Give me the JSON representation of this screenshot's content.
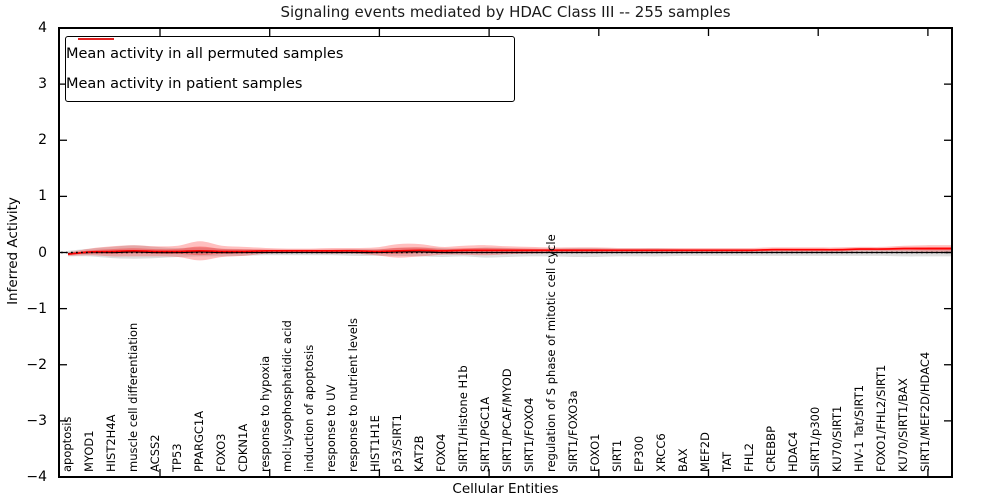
{
  "title": "Signaling events mediated by HDAC Class III -- 255 samples",
  "legend": {
    "items": [
      {
        "label": "Mean activity in all permuted samples",
        "color": "#000000"
      },
      {
        "label": "Mean activity in patient samples",
        "color": "#ff0000"
      }
    ]
  },
  "chart_data": {
    "type": "line",
    "title": "Signaling events mediated by HDAC Class III -- 255 samples",
    "xlabel": "Cellular Entities",
    "ylabel": "Inferred Activity",
    "ylim": [
      -4,
      4
    ],
    "yticks": [
      4,
      3,
      2,
      1,
      0,
      -1,
      -2,
      -3,
      -4
    ],
    "grid": false,
    "legend_position": "upper left",
    "zero_line": {
      "value": 0,
      "style": "dotted",
      "color": "#000000"
    },
    "categories": [
      "apoptosis",
      "MYOD1",
      "HIST2H4A",
      "muscle cell differentiation",
      "ACSS2",
      "TP53",
      "PPARGC1A",
      "FOXO3",
      "CDKN1A",
      "response to hypoxia",
      "mol:Lysophosphatidic acid",
      "induction of apoptosis",
      "response to UV",
      "response to nutrient levels",
      "HIST1H1E",
      "p53/SIRT1",
      "KAT2B",
      "FOXO4",
      "SIRT1/Histone H1b",
      "SIRT1/PGC1A",
      "SIRT1/PCAF/MYOD",
      "SIRT1/FOXO4",
      "regulation of S phase of mitotic cell cycle",
      "SIRT1/FOXO3a",
      "FOXO1",
      "SIRT1",
      "EP300",
      "XRCC6",
      "BAX",
      "MEF2D",
      "TAT",
      "FHL2",
      "CREBBP",
      "HDAC4",
      "SIRT1/p300",
      "KU70/SIRT1",
      "HIV-1 Tat/SIRT1",
      "FOXO1/FHL2/SIRT1",
      "KU70/SIRT1/BAX",
      "SIRT1/MEF2D/HDAC4"
    ],
    "series": [
      {
        "name": "Mean activity in all permuted samples",
        "color": "#000000",
        "band_color": "rgba(0,0,0,0.13)",
        "values": [
          -0.02,
          0,
          0,
          0.01,
          0,
          0,
          0.01,
          0,
          0,
          0,
          0,
          0,
          0,
          0,
          0,
          0.01,
          0.01,
          0,
          0,
          0,
          0,
          0,
          0,
          0,
          0,
          0,
          0,
          0,
          0,
          0,
          0,
          0,
          0,
          0,
          0,
          0,
          0,
          0,
          0,
          0
        ],
        "band_halfwidth": [
          0.05,
          0.07,
          0.1,
          0.12,
          0.1,
          0.08,
          0.08,
          0.07,
          0.06,
          0.05,
          0.05,
          0.05,
          0.05,
          0.06,
          0.06,
          0.07,
          0.08,
          0.08,
          0.07,
          0.09,
          0.08,
          0.07,
          0.07,
          0.08,
          0.08,
          0.07,
          0.07,
          0.07,
          0.06,
          0.06,
          0.06,
          0.06,
          0.06,
          0.06,
          0.06,
          0.06,
          0.06,
          0.06,
          0.07,
          0.07
        ]
      },
      {
        "name": "Mean activity in patient samples",
        "color": "#ff0000",
        "band_color": "rgba(255,0,0,0.25)",
        "values": [
          -0.03,
          0.01,
          0.02,
          0.03,
          0.02,
          0.02,
          0.03,
          0.02,
          0.02,
          0.03,
          0.03,
          0.03,
          0.03,
          0.03,
          0.02,
          0.03,
          0.04,
          0.03,
          0.04,
          0.04,
          0.04,
          0.04,
          0.04,
          0.04,
          0.04,
          0.04,
          0.04,
          0.04,
          0.04,
          0.04,
          0.04,
          0.04,
          0.05,
          0.05,
          0.05,
          0.05,
          0.06,
          0.06,
          0.07,
          0.07
        ],
        "band_halfwidth": [
          0.03,
          0.06,
          0.09,
          0.1,
          0.09,
          0.1,
          0.17,
          0.1,
          0.08,
          0.05,
          0.04,
          0.04,
          0.05,
          0.05,
          0.07,
          0.12,
          0.11,
          0.07,
          0.08,
          0.09,
          0.07,
          0.06,
          0.05,
          0.05,
          0.05,
          0.04,
          0.04,
          0.04,
          0.04,
          0.04,
          0.04,
          0.04,
          0.04,
          0.04,
          0.04,
          0.04,
          0.04,
          0.04,
          0.05,
          0.06
        ]
      }
    ]
  }
}
